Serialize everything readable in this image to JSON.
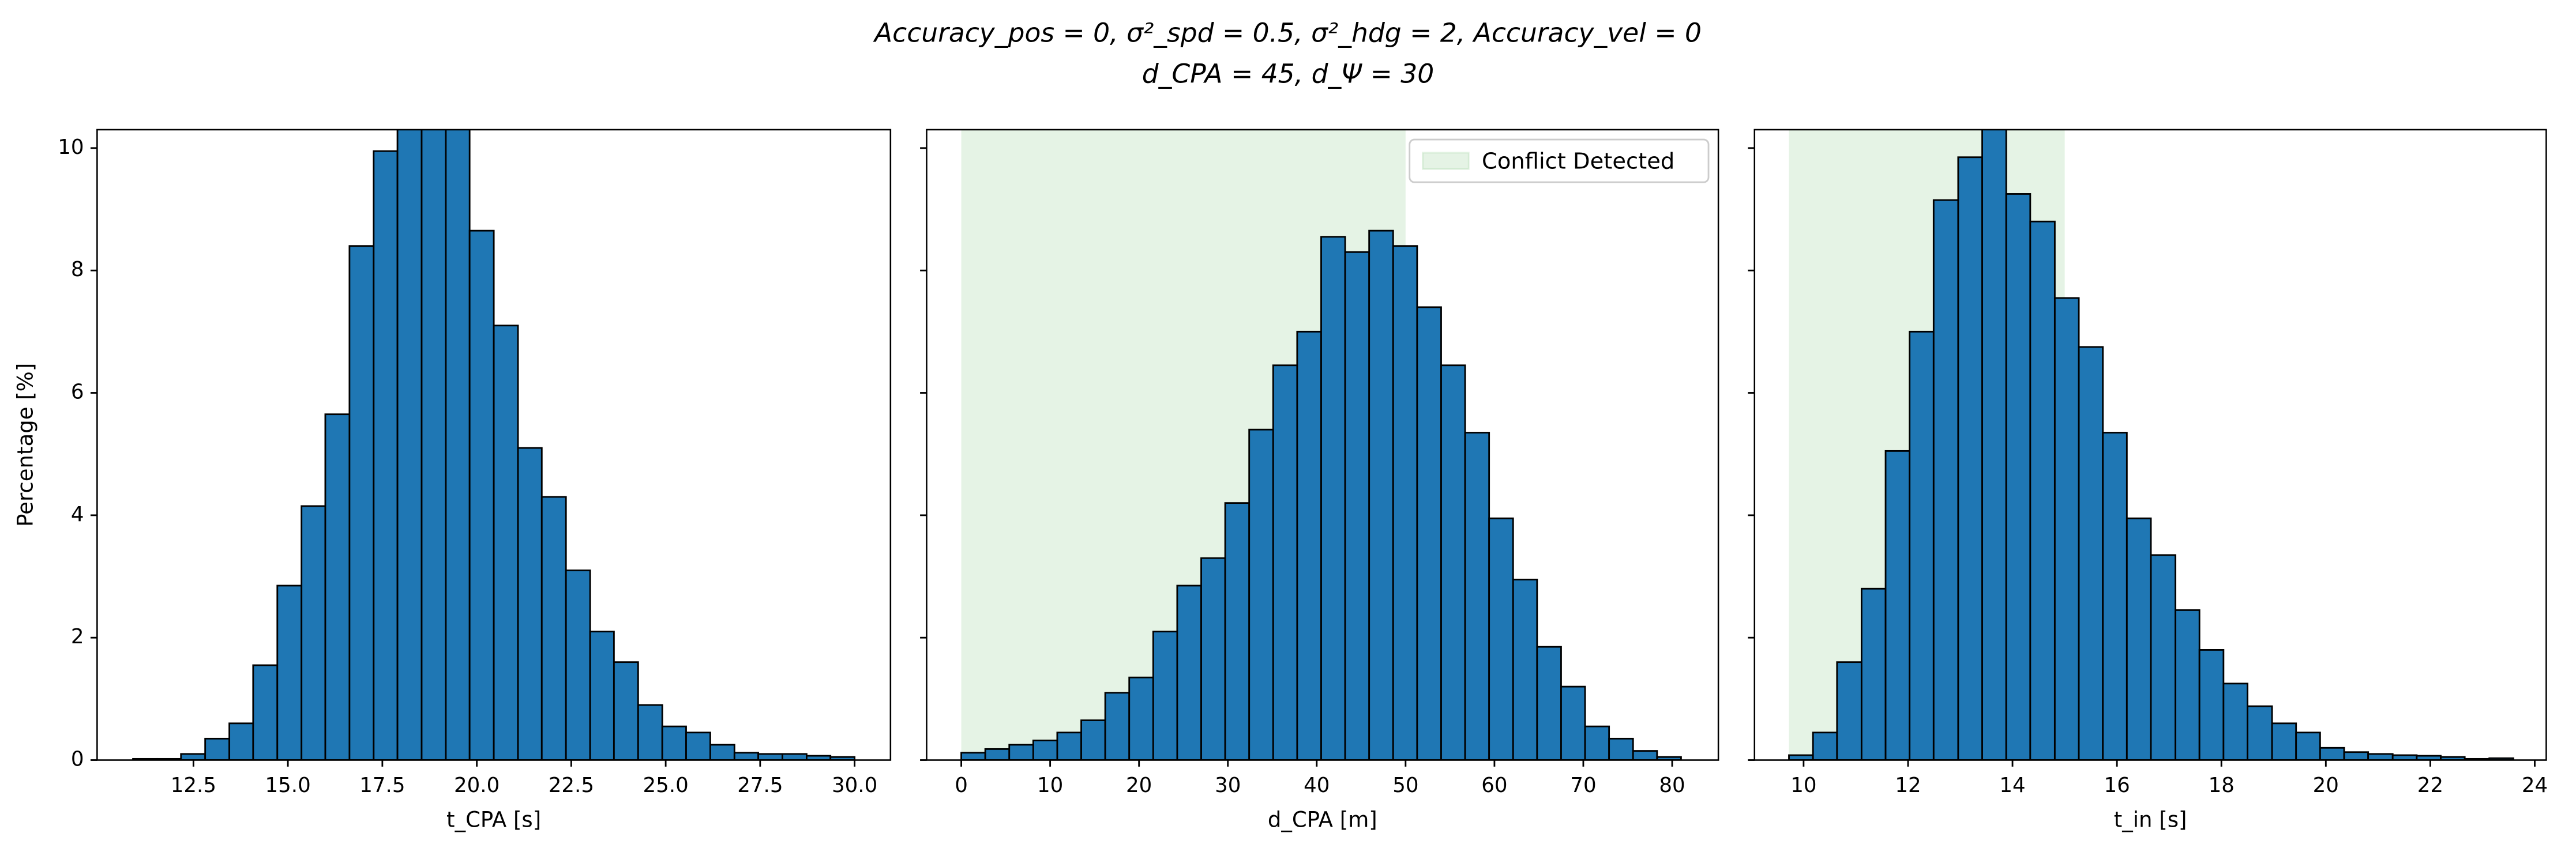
{
  "title": [
    "Accuracy_pos = 0, σ²_spd = 0.5, σ²_hdg = 2, Accuracy_vel = 0",
    "d_CPA = 45, d_Ψ = 30"
  ],
  "chart_data": [
    {
      "type": "histogram",
      "xlabel": "t_CPA [s]",
      "ylabel": "Percentage [%]",
      "color": "#1f77b4",
      "edgecolor": "#000000",
      "bins": [
        10.9,
        11.54,
        12.17,
        12.81,
        13.45,
        14.08,
        14.72,
        15.36,
        15.99,
        16.63,
        17.27,
        17.9,
        18.54,
        19.18,
        19.81,
        20.45,
        21.09,
        21.72,
        22.36,
        23.0,
        23.63,
        24.27,
        24.91,
        25.54,
        26.18,
        26.82,
        27.45,
        28.09,
        28.73,
        29.36,
        30.0
      ],
      "values": [
        0.02,
        0.02,
        0.1,
        0.35,
        0.6,
        1.55,
        2.85,
        4.15,
        5.65,
        8.4,
        9.95,
        10.6,
        10.9,
        10.5,
        8.65,
        7.1,
        5.1,
        4.3,
        3.1,
        2.1,
        1.6,
        0.9,
        0.55,
        0.45,
        0.25,
        0.12,
        0.1,
        0.1,
        0.07,
        0.05
      ],
      "xlim": [
        9.95,
        30.95
      ],
      "ylim": [
        0,
        10.3
      ],
      "xticks": [
        12.5,
        {
          "value": 15,
          "label": "15.0"
        },
        17.5,
        {
          "value": 20,
          "label": "20.0"
        },
        22.5,
        {
          "value": 25,
          "label": "25.0"
        },
        27.5,
        {
          "value": 30,
          "label": "30.0"
        }
      ],
      "yticks": [
        0,
        2,
        4,
        6,
        8,
        10
      ],
      "show_ytick_labels": true
    },
    {
      "type": "histogram",
      "xlabel": "d_CPA [m]",
      "color": "#1f77b4",
      "edgecolor": "#000000",
      "bins": [
        0,
        2.7,
        5.4,
        8.1,
        10.8,
        13.5,
        16.2,
        18.9,
        21.6,
        24.3,
        27,
        29.7,
        32.4,
        35.1,
        37.8,
        40.5,
        43.2,
        45.9,
        48.6,
        51.3,
        54,
        56.7,
        59.4,
        62.1,
        64.8,
        67.5,
        70.2,
        72.9,
        75.6,
        78.3,
        81
      ],
      "values": [
        0.12,
        0.18,
        0.25,
        0.32,
        0.45,
        0.65,
        1.1,
        1.35,
        2.1,
        2.85,
        3.3,
        4.2,
        5.4,
        6.45,
        7.0,
        8.55,
        8.3,
        8.65,
        8.4,
        7.4,
        6.45,
        5.35,
        3.95,
        2.95,
        1.85,
        1.2,
        0.55,
        0.35,
        0.15,
        0.05
      ],
      "xlim": [
        -3.9,
        85.2
      ],
      "ylim": [
        0,
        10.3
      ],
      "xticks": [
        0,
        10,
        20,
        30,
        40,
        50,
        60,
        70,
        80
      ],
      "yticks": [
        0,
        2,
        4,
        6,
        8,
        10
      ],
      "show_ytick_labels": false,
      "span": {
        "x": [
          0,
          50
        ],
        "color": "#2ca02c",
        "name": "Conflict Detected"
      },
      "legend": "upper right"
    },
    {
      "type": "histogram",
      "xlabel": "t_in [s]",
      "color": "#1f77b4",
      "edgecolor": "#000000",
      "bins": [
        9.72,
        10.18,
        10.64,
        11.11,
        11.57,
        12.03,
        12.49,
        12.96,
        13.42,
        13.88,
        14.34,
        14.81,
        15.27,
        15.73,
        16.19,
        16.65,
        17.12,
        17.58,
        18.04,
        18.5,
        18.97,
        19.43,
        19.89,
        20.35,
        20.81,
        21.28,
        21.74,
        22.2,
        22.66,
        23.13,
        23.59
      ],
      "values": [
        0.08,
        0.45,
        1.6,
        2.8,
        5.05,
        7.0,
        9.15,
        9.85,
        10.5,
        9.25,
        8.8,
        7.55,
        6.75,
        5.35,
        3.95,
        3.35,
        2.45,
        1.8,
        1.25,
        0.88,
        0.6,
        0.45,
        0.2,
        0.13,
        0.1,
        0.08,
        0.07,
        0.05,
        0.02,
        0.03
      ],
      "xlim": [
        9.06,
        24.22
      ],
      "ylim": [
        0,
        10.3
      ],
      "xticks": [
        10,
        12,
        14,
        16,
        18,
        20,
        22,
        24
      ],
      "yticks": [
        0,
        2,
        4,
        6,
        8,
        10
      ],
      "show_ytick_labels": false,
      "span": {
        "x": [
          9.72,
          15
        ],
        "color": "#2ca02c"
      }
    }
  ]
}
